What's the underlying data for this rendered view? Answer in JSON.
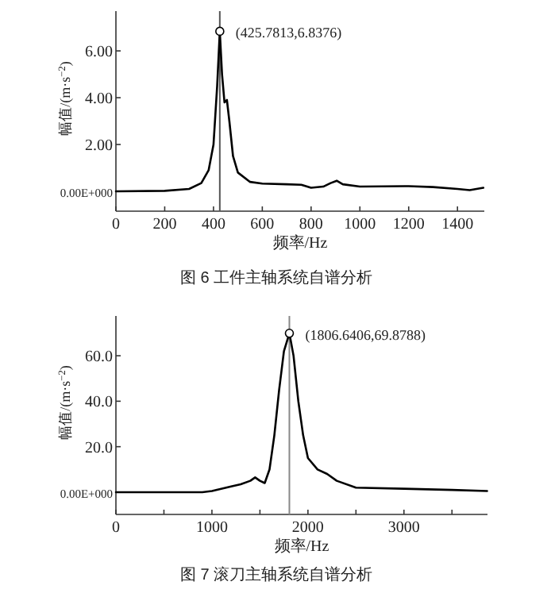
{
  "chart_data": [
    {
      "type": "line",
      "xlabel": "频率/Hz",
      "ylabel": "幅值/(m·s$^{−2}$)",
      "xlim": [
        0,
        1510
      ],
      "ylim": [
        -0.85,
        7.7
      ],
      "xticks": [
        0,
        200,
        400,
        600,
        800,
        1000,
        1200,
        1400
      ],
      "yticks": [
        {
          "value": 0,
          "label": "0.00E+000"
        },
        {
          "value": 2,
          "label": "2.00"
        },
        {
          "value": 4,
          "label": "4.00"
        },
        {
          "value": 6,
          "label": "6.00"
        }
      ],
      "series": [
        {
          "color": "#000000",
          "x": [
            0,
            200,
            300,
            350,
            380,
            400,
            415,
            425.7813,
            435,
            445,
            455,
            465,
            480,
            500,
            550,
            600,
            700,
            760,
            800,
            850,
            880,
            905,
            930,
            1000,
            1200,
            1300,
            1400,
            1450,
            1506
          ],
          "values": [
            0,
            0.02,
            0.1,
            0.35,
            0.9,
            2.0,
            4.5,
            6.8376,
            5.0,
            3.8,
            3.9,
            3.0,
            1.5,
            0.8,
            0.4,
            0.33,
            0.3,
            0.28,
            0.15,
            0.2,
            0.35,
            0.45,
            0.3,
            0.2,
            0.22,
            0.18,
            0.1,
            0.05,
            0.15
          ]
        },
        {
          "type": "scatter",
          "color": "#000000",
          "marker": "circle",
          "x": [
            425.7813
          ],
          "values": [
            6.8376
          ]
        }
      ],
      "ref_lines": [
        {
          "axis": "x",
          "value": 425.7813,
          "color": "#555555"
        }
      ],
      "annotations": [
        {
          "text": "(425.7813,6.8376)",
          "x": 425.7813,
          "y": 6.8376
        },
        "图 6   工件主轴系统自谱分析"
      ]
    },
    {
      "type": "line",
      "xlabel": "频率/Hz",
      "ylabel": "幅值/(m·s$^{−2}$)",
      "xlim": [
        0,
        3870
      ],
      "ylim": [
        -9.8,
        77.5
      ],
      "xticks": [
        0,
        {
          "value": 500,
          "label": null
        },
        1000,
        {
          "value": 1500,
          "label": null
        },
        2000,
        {
          "value": 2500,
          "label": null
        },
        3000,
        {
          "value": 3500,
          "label": null
        }
      ],
      "yticks": [
        {
          "value": 0,
          "label": "0.00E+000"
        },
        {
          "value": 20,
          "label": "20.0"
        },
        {
          "value": 40,
          "label": "40.0"
        },
        {
          "value": 60,
          "label": "60.0"
        }
      ],
      "series": [
        {
          "color": "#000000",
          "x": [
            0,
            900,
            1000,
            1200,
            1300,
            1400,
            1450,
            1500,
            1550,
            1600,
            1650,
            1700,
            1750,
            1806.6406,
            1850,
            1900,
            1950,
            2000,
            2100,
            2200,
            2300,
            2500,
            3000,
            3500,
            3866
          ],
          "values": [
            0,
            0,
            0.5,
            2.5,
            3.5,
            5,
            6.5,
            5,
            4,
            10,
            25,
            45,
            62,
            69.8788,
            60,
            40,
            25,
            15,
            10,
            8,
            5,
            2,
            1.5,
            1,
            0.5
          ]
        },
        {
          "type": "scatter",
          "color": "#000000",
          "marker": "circle",
          "x": [
            1806.6406
          ],
          "values": [
            69.8788
          ]
        }
      ],
      "ref_lines": [
        {
          "axis": "x",
          "value": 1806.6406,
          "color": "#888888"
        }
      ],
      "annotations": [
        {
          "text": "(1806.6406,69.8788)",
          "x": 1806.6406,
          "y": 69.8788
        },
        "图 7   滚刀主轴系统自谱分析"
      ]
    }
  ]
}
